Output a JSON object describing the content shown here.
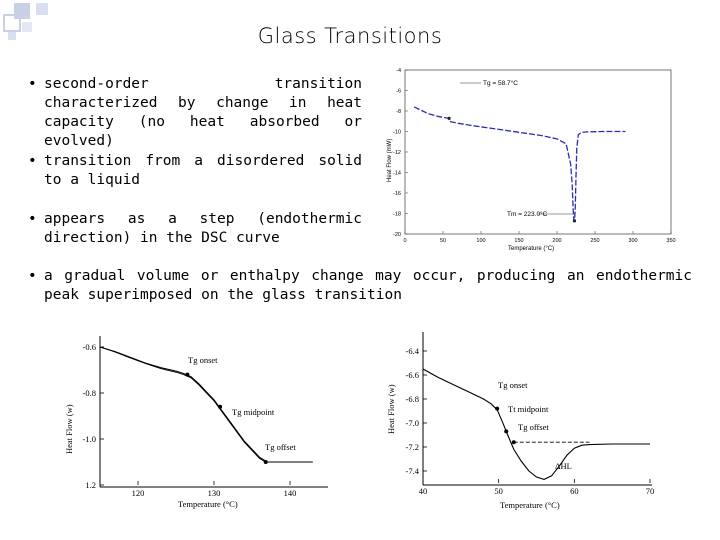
{
  "slide": {
    "title": "Glass Transitions",
    "bullets": [
      {
        "dot": "•",
        "text": "second-order transition characterized by change in heat capacity (no heat absorbed or evolved)"
      },
      {
        "dot": "•",
        "text": "transition from a disordered solid to a liquid"
      },
      {
        "dot": "•",
        "text": "appears as a step (endothermic direction) in the DSC curve"
      },
      {
        "dot": "•",
        "text": "a gradual volume or enthalpy change may occur, producing an endothermic peak superimposed on the glass transition"
      }
    ]
  },
  "colors": {
    "curve_blue": "#2b2bb5",
    "deco_blue": "#c7d0e6"
  },
  "chart_data": [
    {
      "type": "line",
      "xlabel": "Temperature (°C)",
      "ylabel": "Heat Flow (mW)",
      "xlim": [
        0,
        350
      ],
      "ylim": [
        -20,
        0
      ],
      "xticks": [
        "0",
        "50",
        "100",
        "150",
        "200",
        "250",
        "300",
        "350"
      ],
      "yticks": [
        "-4",
        "-6",
        "-8",
        "-10",
        "-12",
        "-14",
        "-16",
        "-18",
        "-20"
      ],
      "series": [
        {
          "x": [
            12,
            30,
            45,
            58,
            60,
            70,
            90,
            120,
            150,
            180,
            200,
            212,
            218,
            220,
            221,
            222,
            223,
            224,
            225,
            226,
            228,
            232,
            240,
            260,
            290
          ],
          "y": [
            -4.5,
            -5.3,
            -5.7,
            -5.9,
            -6.3,
            -6.5,
            -6.8,
            -7.2,
            -7.6,
            -8.0,
            -8.4,
            -9.0,
            -11.5,
            -14,
            -16.5,
            -18.2,
            -18.4,
            -17,
            -13,
            -9.5,
            -7.9,
            -7.6,
            -7.55,
            -7.5,
            -7.5
          ]
        }
      ],
      "annotations": [
        "Tg = 58.7°C",
        "Tm = 223.0°C"
      ]
    },
    {
      "type": "line",
      "xlabel": "Temperature (°C)",
      "ylabel": "Heat Flow (w)",
      "xlim": [
        115,
        145
      ],
      "ylim": [
        -1.2,
        -0.6
      ],
      "xticks": [
        "120",
        "130",
        "140"
      ],
      "yticks": [
        "-0.6",
        "-0.8",
        "-1.0",
        "1.2"
      ],
      "series": [
        {
          "x": [
            115,
            117,
            119,
            121,
            123,
            125,
            126,
            127,
            128,
            130,
            132,
            134,
            136,
            137,
            138,
            140,
            143
          ],
          "y": [
            -0.6,
            -0.62,
            -0.645,
            -0.67,
            -0.69,
            -0.705,
            -0.715,
            -0.73,
            -0.76,
            -0.83,
            -0.92,
            -1.01,
            -1.08,
            -1.1,
            -1.1,
            -1.1,
            -1.1
          ]
        },
        {
          "x": [
            115,
            117,
            119,
            121,
            123,
            125,
            126,
            127,
            128,
            130,
            132,
            134,
            136,
            137
          ],
          "y": [
            -0.6,
            -0.622,
            -0.648,
            -0.672,
            -0.694,
            -0.71,
            -0.72,
            -0.735,
            -0.765,
            -0.835,
            -0.925,
            -1.015,
            -1.085,
            -1.105
          ]
        }
      ],
      "points": [
        {
          "x": 126.5,
          "y": -0.72
        },
        {
          "x": 130.8,
          "y": -0.86
        },
        {
          "x": 136.8,
          "y": -1.1
        }
      ],
      "annotations": [
        "Tg onset",
        "Tg midpoint",
        "Tg offset"
      ]
    },
    {
      "type": "line",
      "xlabel": "Temperature (°C)",
      "ylabel": "Heat Flow (w)",
      "xlim": [
        40,
        70
      ],
      "ylim": [
        -7.5,
        -6.3
      ],
      "xticks": [
        "40",
        "50",
        "60",
        "70"
      ],
      "yticks": [
        "-6.4",
        "-6.6",
        "-6.8",
        "-7.0",
        "-7.2",
        "-7.4"
      ],
      "series": [
        {
          "x": [
            40,
            42,
            44,
            46,
            48,
            49,
            49.8,
            50.5,
            51.2,
            52,
            53,
            54,
            55,
            56,
            57,
            58,
            59,
            60,
            61,
            62,
            65,
            70
          ],
          "y": [
            -6.55,
            -6.62,
            -6.68,
            -6.74,
            -6.8,
            -6.84,
            -6.89,
            -6.99,
            -7.1,
            -7.22,
            -7.32,
            -7.4,
            -7.45,
            -7.47,
            -7.44,
            -7.36,
            -7.27,
            -7.21,
            -7.185,
            -7.18,
            -7.175,
            -7.175
          ]
        },
        {
          "x": [
            52,
            62
          ],
          "y": [
            -7.16,
            -7.16
          ]
        }
      ],
      "points": [
        {
          "x": 49.8,
          "y": -6.88
        },
        {
          "x": 51,
          "y": -7.07
        },
        {
          "x": 52,
          "y": -7.16
        }
      ],
      "annotations": [
        "Tg onset",
        "Tt midpoint",
        "Tg offset",
        "ΔHL"
      ]
    }
  ]
}
